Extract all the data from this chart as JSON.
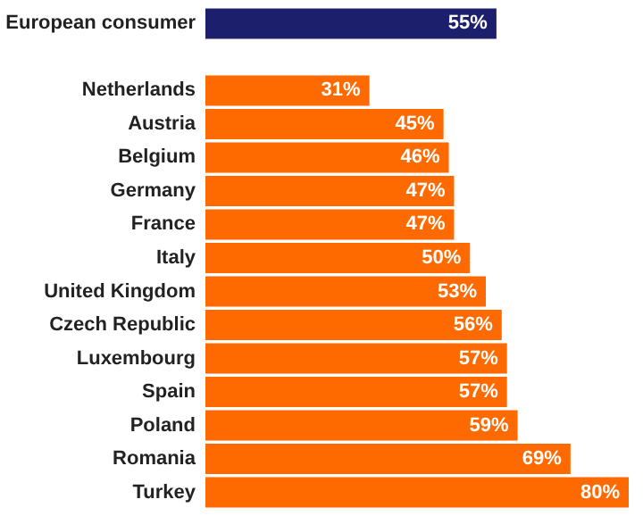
{
  "chart_data": {
    "type": "bar",
    "orientation": "horizontal",
    "categories": [
      "European consumer",
      null,
      "Netherlands",
      "Austria",
      "Belgium",
      "Germany",
      "France",
      "Italy",
      "United Kingdom",
      "Czech Republic",
      "Luxembourg",
      "Spain",
      "Poland",
      "Romania",
      "Turkey"
    ],
    "values": [
      55,
      null,
      31,
      45,
      46,
      47,
      47,
      50,
      53,
      56,
      57,
      57,
      59,
      69,
      80
    ],
    "colors": [
      "#1c1f6b",
      null,
      "#ff6a00",
      "#ff6a00",
      "#ff6a00",
      "#ff6a00",
      "#ff6a00",
      "#ff6a00",
      "#ff6a00",
      "#ff6a00",
      "#ff6a00",
      "#ff6a00",
      "#ff6a00",
      "#ff6a00",
      "#ff6a00"
    ],
    "value_labels": [
      "55%",
      null,
      "31%",
      "45%",
      "46%",
      "47%",
      "47%",
      "50%",
      "53%",
      "56%",
      "57%",
      "57%",
      "59%",
      "69%",
      "80%"
    ],
    "grid": false
  }
}
